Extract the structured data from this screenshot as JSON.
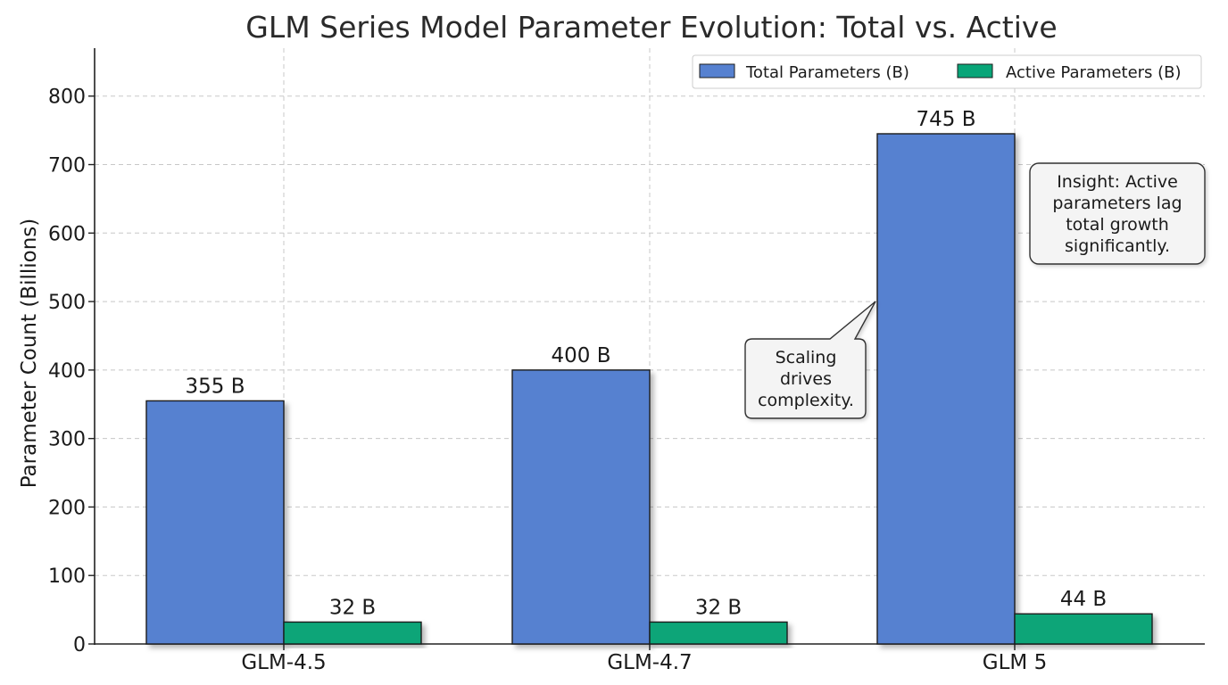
{
  "chart_data": {
    "type": "bar",
    "title": "GLM Series Model Parameter Evolution: Total vs. Active",
    "xlabel": "",
    "ylabel": "Parameter Count (Billions)",
    "categories": [
      "GLM-4.5",
      "GLM-4.7",
      "GLM 5"
    ],
    "ylim": [
      0,
      870
    ],
    "yticks": [
      0,
      100,
      200,
      300,
      400,
      500,
      600,
      700,
      800
    ],
    "grid": true,
    "legend_position": "top-right",
    "series": [
      {
        "name": "Total Parameters (B)",
        "values": [
          355,
          400,
          745
        ],
        "labels": [
          "355 B",
          "400 B",
          "745 B"
        ],
        "color": "#5681d0"
      },
      {
        "name": "Active Parameters (B)",
        "values": [
          32,
          32,
          44
        ],
        "labels": [
          "32 B",
          "32 B",
          "44 B"
        ],
        "color": "#08a578"
      }
    ],
    "annotations": [
      {
        "name": "scaling-note",
        "lines": [
          "Scaling",
          "drives",
          "complexity."
        ],
        "target_category": "GLM 5",
        "target_series": "Total Parameters (B)",
        "target_value": 500
      },
      {
        "name": "insight-note",
        "lines": [
          "Insight: Active",
          "parameters lag",
          "total growth",
          "significantly."
        ]
      }
    ]
  }
}
